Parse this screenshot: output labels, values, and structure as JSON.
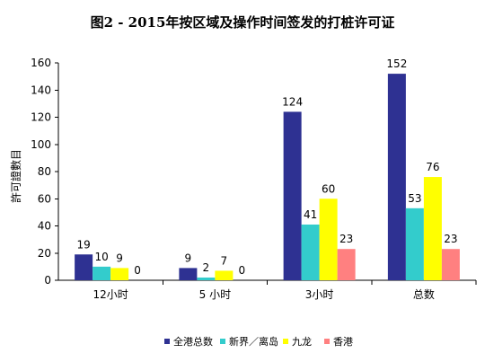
{
  "chart_data": {
    "type": "bar",
    "title": "图2 - 2015年按区域及操作时间签发的打桩许可证",
    "xlabel": "",
    "ylabel": "許可證數目",
    "ylim": [
      0,
      160
    ],
    "yticks": [
      0,
      20,
      40,
      60,
      80,
      100,
      120,
      140,
      160
    ],
    "categories": [
      "12小时",
      "5 小时",
      "3小时",
      "总数"
    ],
    "series": [
      {
        "name": "全港总数",
        "color": "#2E3192",
        "values": [
          19,
          9,
          124,
          152
        ]
      },
      {
        "name": "新界／离岛",
        "color": "#33CCCC",
        "values": [
          10,
          2,
          41,
          53
        ]
      },
      {
        "name": "九龙",
        "color": "#FFFF00",
        "values": [
          9,
          7,
          60,
          76
        ]
      },
      {
        "name": "香港",
        "color": "#FF8080",
        "values": [
          0,
          0,
          23,
          23
        ]
      }
    ],
    "grid": false,
    "legend_position": "bottom"
  }
}
